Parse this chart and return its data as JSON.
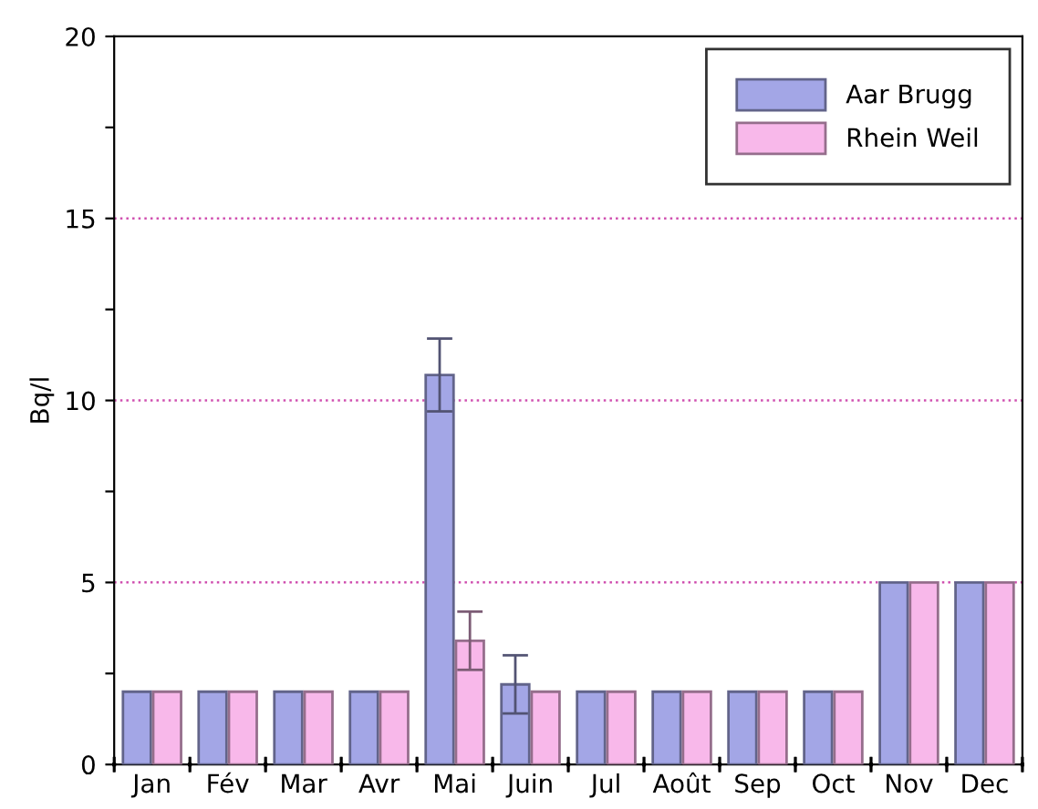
{
  "chart_data": {
    "type": "bar",
    "ylabel": "Bq/l",
    "categories": [
      "Jan",
      "Fév",
      "Mar",
      "Avr",
      "Mai",
      "Juin",
      "Jul",
      "Août",
      "Sep",
      "Oct",
      "Nov",
      "Dec"
    ],
    "series": [
      {
        "name": "Aar Brugg",
        "color": "#a3a6e6",
        "values": [
          2,
          2,
          2,
          2,
          10.7,
          2.2,
          2,
          2,
          2,
          2,
          5,
          5
        ],
        "errors": [
          null,
          null,
          null,
          null,
          1.0,
          0.8,
          null,
          null,
          null,
          null,
          null,
          null
        ]
      },
      {
        "name": "Rhein Weil",
        "color": "#f8b8ea",
        "values": [
          2,
          2,
          2,
          2,
          3.4,
          2,
          2,
          2,
          2,
          2,
          5,
          5
        ],
        "errors": [
          null,
          null,
          null,
          null,
          0.8,
          null,
          null,
          null,
          null,
          null,
          null,
          null
        ]
      }
    ],
    "ylim": [
      0,
      20
    ],
    "yticks": [
      0,
      {
        "value": 2.5,
        "label": null
      },
      5,
      {
        "value": 7.5,
        "label": null
      },
      10,
      {
        "value": 12.5,
        "label": null
      },
      15,
      {
        "value": 17.5,
        "label": null
      },
      20
    ],
    "ref_lines": [
      {
        "axis": "y",
        "value": 5,
        "color": "#d050b0",
        "line_style": "dotted"
      },
      {
        "axis": "y",
        "value": 10,
        "color": "#d050b0",
        "line_style": "dotted"
      },
      {
        "axis": "y",
        "value": 15,
        "color": "#d050b0",
        "line_style": "dotted"
      }
    ],
    "legend": "top right",
    "grid": false
  }
}
